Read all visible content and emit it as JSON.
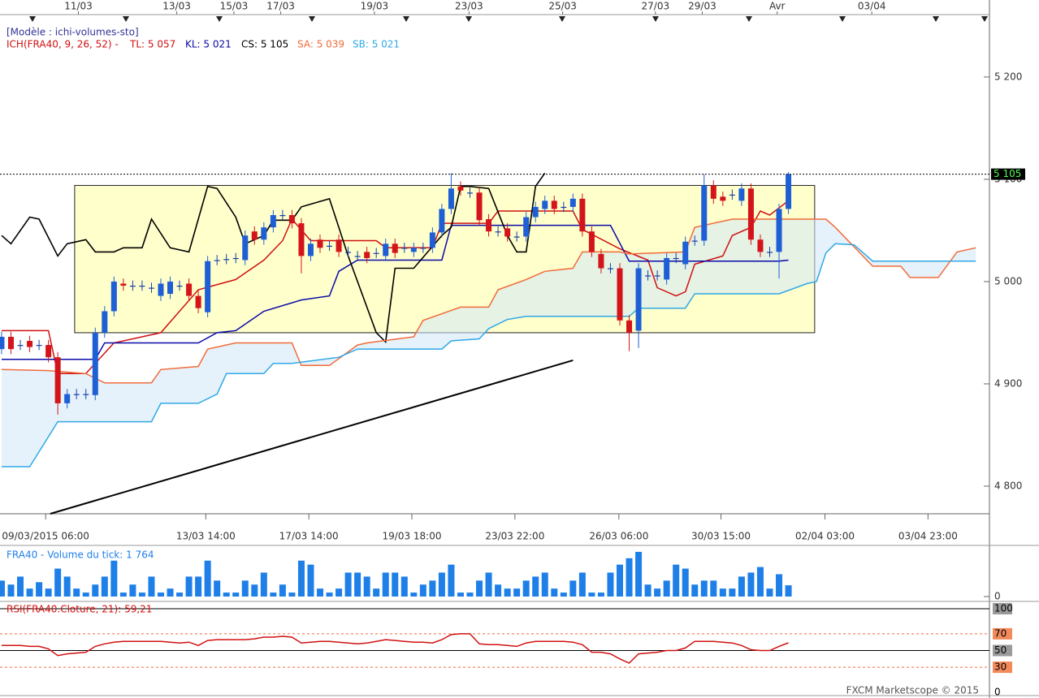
{
  "chart_data": [
    {
      "type": "candlestick",
      "model": "[Modèle : ichi-volumes-sto]",
      "title": "ICH(FRA40, 9, 26, 52) -",
      "up_color": "#1f5fd6",
      "down_color": "#d4141b",
      "doji_color": "#1a3fa8",
      "open": [
        4934,
        4946,
        4938,
        4942,
        4938,
        4938,
        4926,
        4881,
        4890,
        4890,
        4889,
        4950,
        4971,
        4998,
        4996,
        4996,
        4994,
        4986,
        4988,
        4996,
        4998,
        4986,
        4970,
        5021,
        5022,
        5023,
        5021,
        5049,
        5041,
        5053,
        5065,
        5065,
        5057,
        5025,
        5041,
        5035,
        5041,
        5029,
        5025,
        5029,
        5028,
        5025,
        5037,
        5033,
        5029,
        5033,
        5033,
        5048,
        5071,
        5093,
        5087,
        5087,
        5061,
        5049,
        5052,
        5044,
        5044,
        5063,
        5071,
        5079,
        5073,
        5073,
        5081,
        5049,
        5027,
        5013,
        5013,
        4962,
        4952,
        5006,
        5006,
        5002,
        5023,
        5017,
        5040,
        5040,
        5094,
        5083,
        5085,
        5079,
        5091,
        5041,
        5029,
        5029,
        5071
      ],
      "high": [
        4951,
        4951,
        4943,
        4947,
        4943,
        4943,
        4931,
        4895,
        4895,
        4895,
        4955,
        4976,
        5005,
        5003,
        5001,
        5001,
        4999,
        5003,
        5005,
        5001,
        5003,
        4991,
        5025,
        5026,
        5027,
        5028,
        5050,
        5054,
        5058,
        5070,
        5070,
        5070,
        5062,
        5042,
        5046,
        5040,
        5046,
        5034,
        5030,
        5034,
        5033,
        5042,
        5042,
        5038,
        5038,
        5038,
        5053,
        5076,
        5106,
        5098,
        5092,
        5092,
        5066,
        5054,
        5057,
        5049,
        5068,
        5078,
        5084,
        5084,
        5078,
        5086,
        5086,
        5054,
        5032,
        5018,
        5018,
        4967,
        5018,
        5011,
        5011,
        5028,
        5028,
        5044,
        5045,
        5105,
        5099,
        5088,
        5090,
        5096,
        5096,
        5046,
        5034,
        5076,
        5107
      ],
      "low": [
        4929,
        4929,
        4933,
        4931,
        4933,
        4921,
        4870,
        4876,
        4885,
        4885,
        4884,
        4945,
        4966,
        4991,
        4991,
        4991,
        4989,
        4981,
        4983,
        4991,
        4981,
        4969,
        4965,
        5016,
        5017,
        5018,
        5016,
        5036,
        5036,
        5048,
        5060,
        5052,
        5008,
        5020,
        5028,
        5030,
        5024,
        5024,
        5020,
        5018,
        5023,
        5020,
        5023,
        5028,
        5024,
        5028,
        5028,
        5043,
        5066,
        5084,
        5082,
        5055,
        5044,
        5044,
        5039,
        5039,
        5039,
        5058,
        5066,
        5066,
        5068,
        5068,
        5044,
        5024,
        5008,
        5008,
        4957,
        4932,
        4935,
        5001,
        5001,
        4997,
        5018,
        5012,
        5035,
        5035,
        5076,
        5074,
        5080,
        5074,
        5036,
        5024,
        5024,
        5003,
        5066
      ],
      "close": [
        4946,
        4934,
        4938,
        4936,
        4938,
        4926,
        4881,
        4890,
        4890,
        4890,
        4950,
        4971,
        5000,
        4996,
        4996,
        4996,
        4994,
        4998,
        5000,
        4996,
        4986,
        4974,
        5020,
        5021,
        5022,
        5023,
        5045,
        5041,
        5053,
        5065,
        5065,
        5057,
        5025,
        5037,
        5033,
        5035,
        5029,
        5029,
        5025,
        5023,
        5028,
        5037,
        5028,
        5033,
        5033,
        5033,
        5048,
        5071,
        5091,
        5089,
        5087,
        5060,
        5049,
        5049,
        5044,
        5044,
        5063,
        5073,
        5079,
        5071,
        5073,
        5081,
        5049,
        5029,
        5013,
        5013,
        4962,
        4950,
        5013,
        5006,
        5006,
        5023,
        5023,
        5039,
        5040,
        5094,
        5081,
        5079,
        5085,
        5091,
        5041,
        5029,
        5029,
        5071,
        5105
      ],
      "lines": [
        {
          "name": "TL: 5 057",
          "color": "#d01010",
          "x": [
            0,
            5,
            6,
            9,
            12,
            17,
            21,
            25,
            28,
            30,
            31,
            33,
            40,
            41,
            46,
            47,
            52,
            53,
            61,
            62,
            66,
            69,
            70,
            72,
            73,
            74,
            77,
            78,
            80,
            81,
            82,
            84
          ],
          "values": [
            4952,
            4952,
            4910,
            4910,
            4940,
            4950,
            4992,
            5002,
            5021,
            5040,
            5061,
            5040,
            5040,
            5033,
            5033,
            5057,
            5057,
            5069,
            5069,
            5051,
            5032,
            5021,
            4994,
            4986,
            4990,
            5017,
            5025,
            5045,
            5053,
            5069,
            5065,
            5079
          ]
        },
        {
          "name": "KL: 5 021",
          "color": "#0a0aa8",
          "x": [
            0,
            10,
            11,
            21,
            23,
            25,
            28,
            32,
            35,
            36,
            38,
            47,
            48,
            65,
            67,
            83,
            84
          ],
          "values": [
            4924,
            4924,
            4940,
            4940,
            4950,
            4952,
            4971,
            4982,
            4986,
            5010,
            5021,
            5021,
            5055,
            5055,
            5020,
            5020,
            5021
          ]
        },
        {
          "name": "CS: 5 105",
          "color": "#000000",
          "x": [
            0,
            1,
            3,
            4,
            6,
            7,
            9,
            10,
            12,
            13,
            15,
            16,
            18,
            20,
            22,
            23,
            25,
            26,
            28,
            29,
            31,
            32,
            35,
            37,
            40,
            41,
            42,
            44,
            47,
            48,
            49,
            50,
            52,
            54,
            55,
            56,
            57,
            58
          ],
          "values": [
            5045,
            5037,
            5063,
            5061,
            5025,
            5037,
            5041,
            5029,
            5029,
            5033,
            5033,
            5061,
            5033,
            5029,
            5093,
            5091,
            5063,
            5037,
            5045,
            5060,
            5060,
            5073,
            5081,
            5025,
            4950,
            4941,
            5013,
            5013,
            5045,
            5053,
            5093,
            5093,
            5091,
            5045,
            5029,
            5029,
            5093,
            5106
          ]
        },
        {
          "name": "SA: 5 039",
          "color": "#f26b3a",
          "x": [
            0,
            5,
            9,
            11,
            16,
            17,
            21,
            22,
            25,
            31,
            32,
            35,
            38,
            39,
            44,
            45,
            49,
            52,
            53,
            56,
            58,
            61,
            62,
            66,
            67,
            73,
            74,
            78,
            88,
            89,
            93,
            96,
            97,
            100,
            102,
            104
          ],
          "values": [
            4914,
            4913,
            4910,
            4901,
            4901,
            4914,
            4917,
            4934,
            4940,
            4940,
            4918,
            4918,
            4938,
            4940,
            4946,
            4962,
            4975,
            4975,
            4992,
            5002,
            5010,
            5013,
            5029,
            5029,
            5027,
            5029,
            5053,
            5061,
            5061,
            5053,
            5015,
            5015,
            5004,
            5004,
            5029,
            5033
          ]
        },
        {
          "name": "SB: 5 021",
          "color": "#2fa8e6",
          "x": [
            0,
            3,
            6,
            16,
            17,
            21,
            23,
            24,
            28,
            29,
            31,
            36,
            38,
            47,
            48,
            51,
            52,
            54,
            56,
            67,
            68,
            73,
            74,
            83,
            86,
            87,
            88,
            89,
            91,
            93,
            104
          ],
          "values": [
            4819,
            4819,
            4863,
            4863,
            4881,
            4881,
            4890,
            4910,
            4910,
            4920,
            4920,
            4926,
            4934,
            4934,
            4942,
            4944,
            4954,
            4963,
            4966,
            4966,
            4974,
            4974,
            4988,
            4988,
            4998,
            5000,
            5028,
            5037,
            5036,
            5020,
            5020
          ]
        }
      ],
      "cloud_color": "#cfe8f8",
      "box": {
        "x": [
          7.8,
          86.8
        ],
        "values": [
          5094,
          4950
        ],
        "color": "#ffffcc"
      },
      "trendline": {
        "x": [
          5.2,
          61
        ],
        "values": [
          4773,
          4923
        ]
      },
      "last_price": {
        "value": 5105,
        "label": "5 105"
      },
      "xlim": [
        -0.17,
        105.46
      ],
      "ylim": [
        4773,
        5261
      ],
      "yticks": [
        {
          "value": 5200,
          "label": "5 200"
        },
        {
          "value": 5100,
          "label": "5 100"
        },
        {
          "value": 5000,
          "label": "5 000"
        },
        {
          "value": 4900,
          "label": "4 900"
        },
        {
          "value": 4800,
          "label": "4 800"
        }
      ],
      "xticks": [
        {
          "value": 4.7,
          "label": "09/03/2015 06:00"
        },
        {
          "value": 21.8,
          "label": "13/03 14:00"
        },
        {
          "value": 32.8,
          "label": "17/03 14:00"
        },
        {
          "value": 43.8,
          "label": "19/03 18:00"
        },
        {
          "value": 54.8,
          "label": "23/03 22:00"
        },
        {
          "value": 65.9,
          "label": "26/03 06:00"
        },
        {
          "value": 76.8,
          "label": "30/03 15:00"
        },
        {
          "value": 87.9,
          "label": "02/04 03:00"
        },
        {
          "value": 98.9,
          "label": "03/04 23:00"
        }
      ],
      "x2ticks": [
        {
          "value": 8.2,
          "label": "11/03"
        },
        {
          "value": 18.7,
          "label": "13/03"
        },
        {
          "value": 24.8,
          "label": "15/03"
        },
        {
          "value": 29.8,
          "label": "17/03"
        },
        {
          "value": 39.8,
          "label": "19/03"
        },
        {
          "value": 49.9,
          "label": "23/03"
        },
        {
          "value": 59.9,
          "label": "25/03"
        },
        {
          "value": 69.8,
          "label": "27/03"
        },
        {
          "value": 74.8,
          "label": "29/03"
        },
        {
          "value": 82.8,
          "label": "Avr"
        },
        {
          "value": 92.9,
          "label": "03/04"
        }
      ]
    },
    {
      "type": "bar",
      "title": "FRA40 - Volume du tick: 1 764",
      "color": "#1e7fe8",
      "values": [
        2500,
        1875,
        3125,
        1250,
        2250,
        1250,
        4375,
        3125,
        1250,
        625,
        1875,
        3125,
        5625,
        625,
        1875,
        625,
        3125,
        625,
        1250,
        625,
        3125,
        3125,
        5625,
        2500,
        625,
        625,
        2500,
        1875,
        3750,
        625,
        1875,
        625,
        5625,
        5000,
        1250,
        625,
        1250,
        3750,
        3750,
        3125,
        1250,
        3750,
        3750,
        3125,
        625,
        1875,
        2500,
        3750,
        5000,
        625,
        625,
        2500,
        3750,
        1875,
        1250,
        1250,
        2500,
        3125,
        3750,
        1250,
        625,
        2500,
        3750,
        625,
        625,
        3750,
        5000,
        6000,
        7000,
        1875,
        1250,
        2500,
        5000,
        4375,
        1875,
        2500,
        2500,
        1250,
        1250,
        3125,
        3750,
        4625,
        1250,
        3500,
        1764
      ],
      "ylim": [
        0,
        7500
      ],
      "yticks": [
        0
      ]
    },
    {
      "type": "line",
      "title": "RSI(FRA40.Cloture, 21): 59,21",
      "color": "#d01010",
      "values": [
        56,
        56,
        56,
        55,
        55,
        52,
        44,
        46,
        47,
        48,
        55,
        58,
        60,
        61,
        61,
        61,
        61,
        61,
        60,
        59,
        60,
        56,
        62,
        63,
        63,
        63,
        63,
        64,
        66,
        66,
        67,
        66,
        59,
        60,
        61,
        61,
        60,
        59,
        58,
        59,
        61,
        63,
        62,
        61,
        60,
        60,
        59,
        63,
        69,
        70,
        70,
        58,
        57,
        57,
        56,
        55,
        59,
        61,
        61,
        61,
        61,
        60,
        57,
        48,
        48,
        46,
        40,
        35,
        46,
        47,
        48,
        50,
        50,
        53,
        61,
        61,
        61,
        60,
        59,
        56,
        51,
        50,
        50,
        55,
        59.21
      ],
      "ylim": [
        0,
        100
      ],
      "yticks": [
        100,
        70,
        50,
        30,
        0
      ]
    }
  ],
  "footer": "FXCM Marketscope © 2015"
}
